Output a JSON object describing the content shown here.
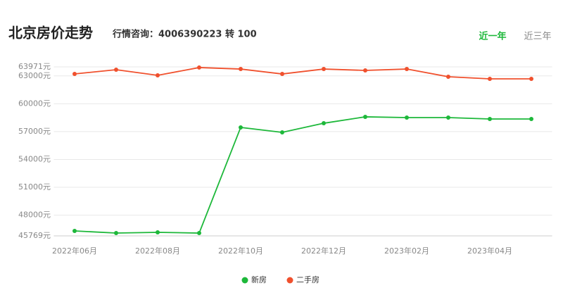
{
  "header": {
    "title": "北京房价走势",
    "subtitle": "行情咨询：4006390223 转 100"
  },
  "tabs": {
    "items": [
      "近一年",
      "近三年"
    ],
    "active": 0
  },
  "chart_data": {
    "type": "line",
    "categories": [
      "2022年06月",
      null,
      "2022年08月",
      null,
      "2022年10月",
      null,
      "2022年12月",
      null,
      "2023年02月",
      null,
      "2023年04月",
      null
    ],
    "series": [
      {
        "name": "新房",
        "color": "#1db83a",
        "values": [
          46300,
          46070,
          46150,
          46070,
          57450,
          56920,
          57900,
          58590,
          58510,
          58510,
          58360,
          58360
        ]
      },
      {
        "name": "二手房",
        "color": "#f0502d",
        "values": [
          63210,
          63670,
          63060,
          63900,
          63740,
          63210,
          63740,
          63590,
          63740,
          62910,
          62680,
          62680
        ]
      }
    ],
    "ylim": [
      45769,
      63971
    ],
    "yticks": [
      {
        "value": 45769,
        "label": "45769元"
      },
      {
        "value": 48000,
        "label": "48000元"
      },
      {
        "value": 51000,
        "label": "51000元"
      },
      {
        "value": 54000,
        "label": "54000元"
      },
      {
        "value": 57000,
        "label": "57000元"
      },
      {
        "value": 60000,
        "label": "60000元"
      },
      {
        "value": 63000,
        "label": "63000元"
      },
      {
        "value": 63971,
        "label": "63971元"
      }
    ],
    "grid": true,
    "legend": "bottom"
  }
}
